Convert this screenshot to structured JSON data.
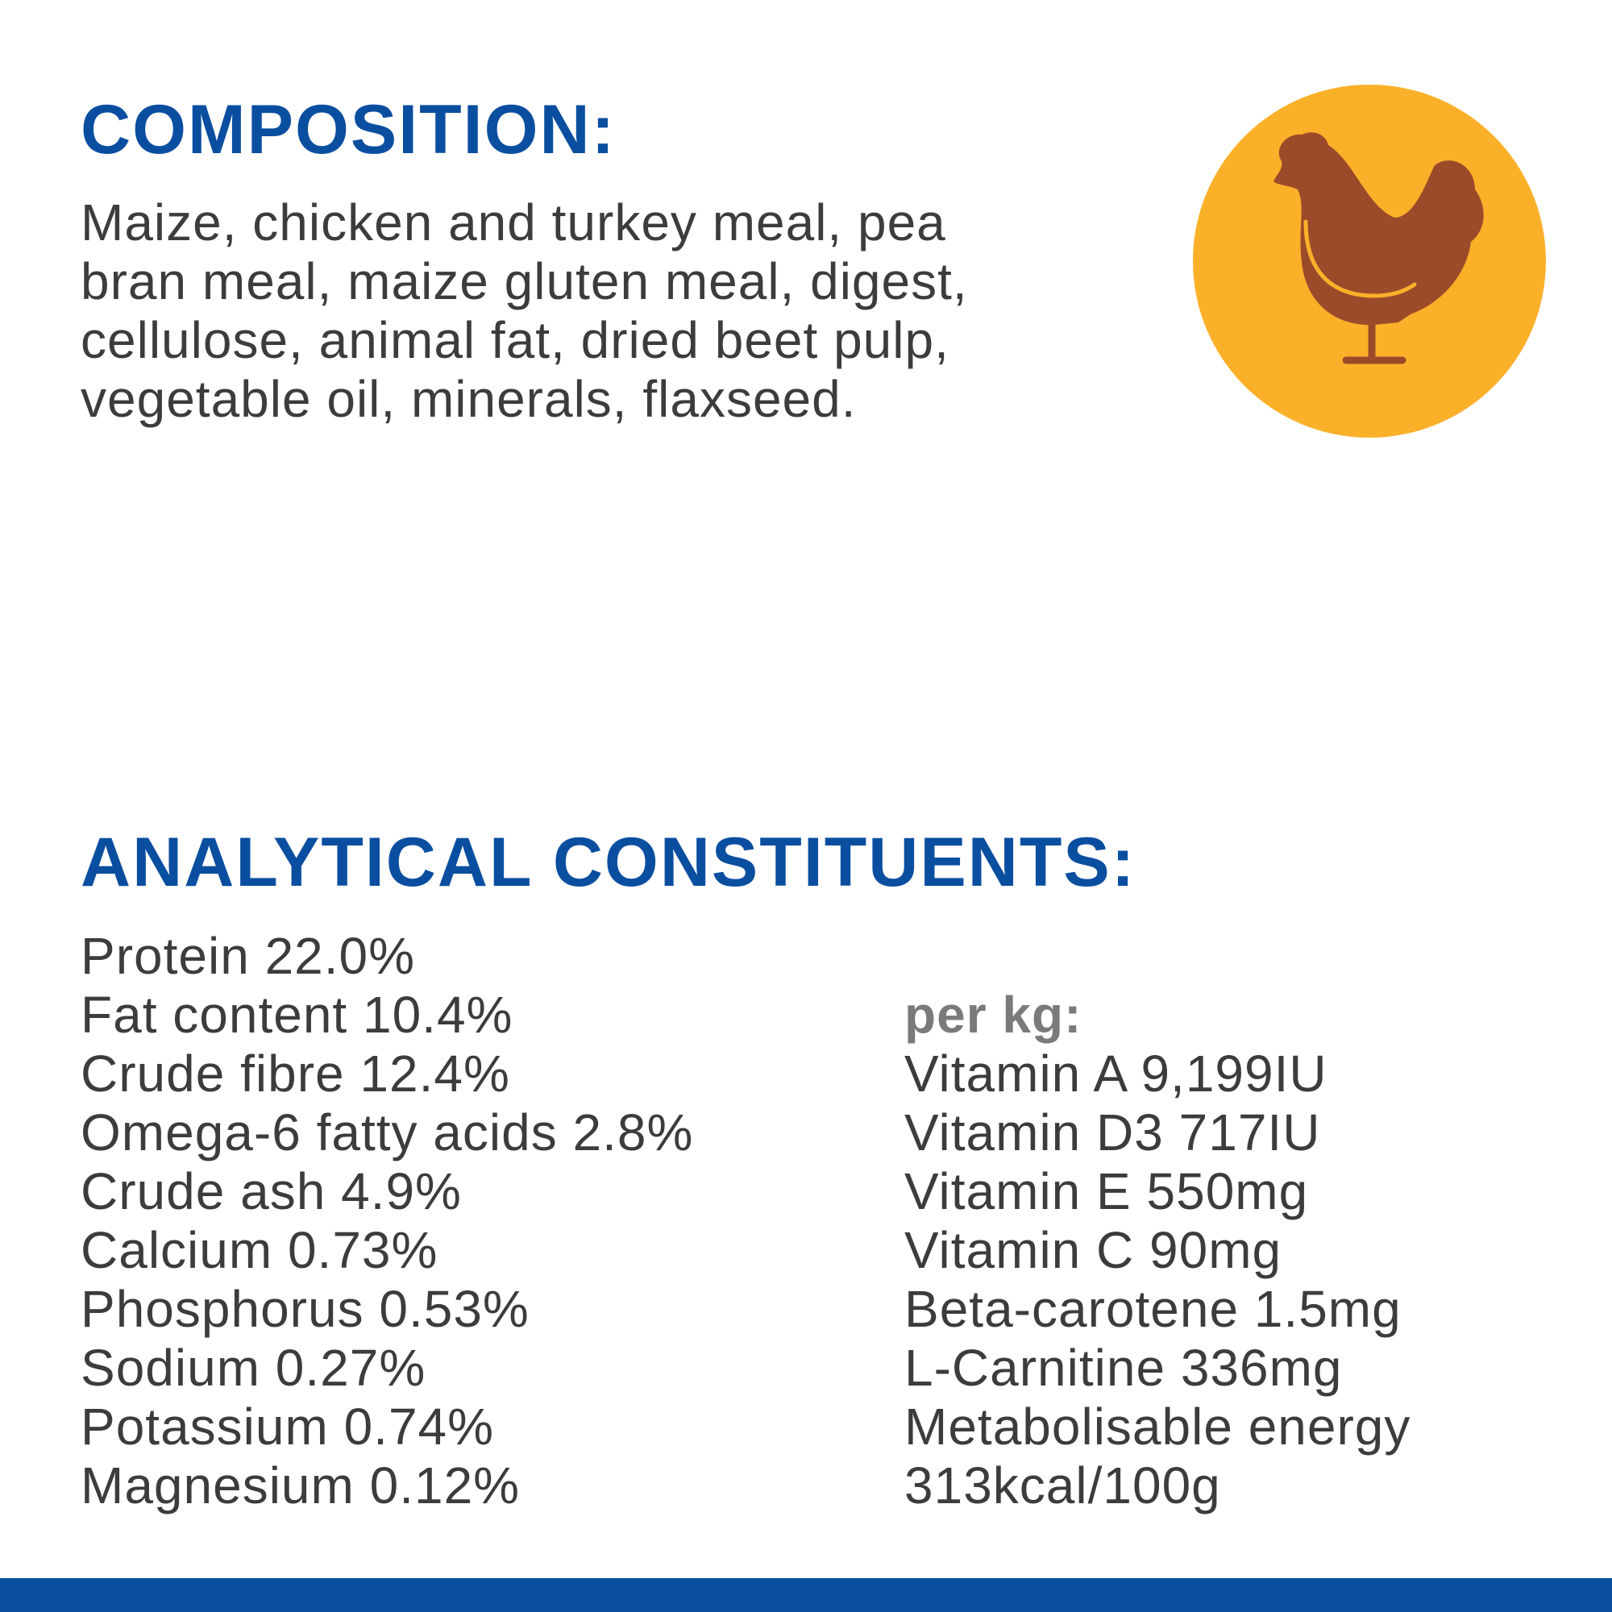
{
  "composition": {
    "title": "COMPOSITION:",
    "lines": [
      "Maize, chicken and turkey meal, pea",
      "bran meal, maize gluten meal, digest,",
      "cellulose, animal fat, dried beet pulp,",
      "vegetable oil, minerals, flaxseed."
    ]
  },
  "analytical": {
    "title": "ANALYTICAL CONSTITUENTS:",
    "left": [
      "Protein 22.0%",
      "Fat content 10.4%",
      "Crude fibre 12.4%",
      "Omega-6 fatty acids 2.8%",
      "Crude ash 4.9%",
      "Calcium 0.73%",
      "Phosphorus 0.53%",
      "Sodium 0.27%",
      "Potassium 0.74%",
      "Magnesium 0.12%"
    ],
    "right_title": "per kg:",
    "right": [
      "Vitamin A 9,199IU",
      "Vitamin D3 717IU",
      "Vitamin E 550mg",
      "Vitamin C 90mg",
      "Beta-carotene 1.5mg",
      "L-Carnitine 336mg",
      "Metabolisable energy",
      "313kcal/100g"
    ]
  }
}
